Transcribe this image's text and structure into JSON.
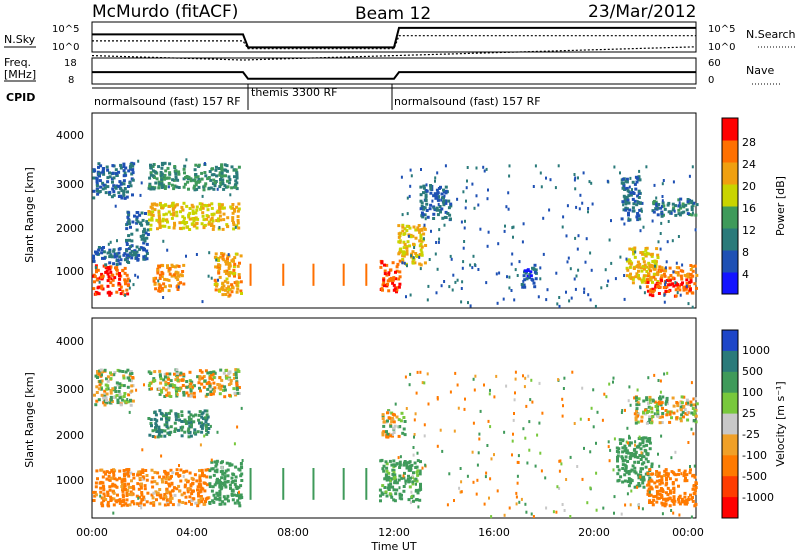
{
  "header": {
    "station": "McMurdo (fitACF)",
    "beam": "Beam 12",
    "date": "23/Mar/2012"
  },
  "top_panels": {
    "nsky_label": "N.Sky",
    "nsky_ticks": [
      "10^5",
      "10^0"
    ],
    "nsearch_ticks": [
      "10^5",
      "10^0"
    ],
    "nsearch_label": "N.Search",
    "freq_label_1": "Freq.",
    "freq_label_2": "[MHz]",
    "freq_ticks": [
      "18",
      "8"
    ],
    "nave_ticks": [
      "60",
      "0"
    ],
    "nave_label": "Nave",
    "cpid_label": "CPID",
    "cpid_segments": [
      {
        "text": "normalsound (fast) 157 RF"
      },
      {
        "text": "themis 3300 RF"
      },
      {
        "text": "normalsound (fast) 157 RF"
      }
    ]
  },
  "axes": {
    "ylabel": "Slant Range [km]",
    "xlabel": "Time UT",
    "y_ticks": [
      "1000",
      "2000",
      "3000",
      "4000"
    ],
    "x_ticks": [
      "00:00",
      "04:00",
      "08:00",
      "12:00",
      "16:00",
      "20:00",
      "00:00"
    ]
  },
  "colorbars": {
    "power": {
      "label": "Power [dB]",
      "ticks": [
        "4",
        "8",
        "12",
        "16",
        "20",
        "24",
        "28"
      ],
      "colors": [
        "#1414ff",
        "#1e50b4",
        "#2a7a7a",
        "#3f9a5a",
        "#c9d400",
        "#f0a010",
        "#ff7000",
        "#ff0000"
      ]
    },
    "velocity": {
      "label": "Velocity [m s⁻¹]",
      "ticks": [
        "1000",
        "500",
        "100",
        "25",
        "-25",
        "-100",
        "-500",
        "-1000"
      ],
      "colors": [
        "#1e46c8",
        "#2a7a7a",
        "#3f9a5a",
        "#78c83c",
        "#c8c8c8",
        "#f0a028",
        "#ff7a00",
        "#ff3c00",
        "#ff0000"
      ]
    }
  },
  "chart_data": [
    {
      "type": "heatmap",
      "title": "Power",
      "xlabel": "Time UT",
      "ylabel": "Slant Range [km]",
      "xlim": [
        "00:00",
        "24:00"
      ],
      "ylim": [
        200,
        4600
      ],
      "colorbar": {
        "label": "Power [dB]",
        "range": [
          0,
          32
        ]
      },
      "regions": [
        {
          "t": [
            0.0,
            1.4
          ],
          "r": [
            500,
            1200
          ],
          "value": 28
        },
        {
          "t": [
            0.0,
            1.4
          ],
          "r": [
            1200,
            1600
          ],
          "value": 8
        },
        {
          "t": [
            0.0,
            1.6
          ],
          "r": [
            2700,
            3500
          ],
          "value": 8
        },
        {
          "t": [
            1.3,
            2.2
          ],
          "r": [
            1300,
            2400
          ],
          "value": 8
        },
        {
          "t": [
            2.2,
            5.8
          ],
          "r": [
            2000,
            2600
          ],
          "value": 20
        },
        {
          "t": [
            2.4,
            3.6
          ],
          "r": [
            600,
            1200
          ],
          "value": 24
        },
        {
          "t": [
            2.2,
            5.8
          ],
          "r": [
            2900,
            3500
          ],
          "value": 12
        },
        {
          "t": [
            4.8,
            5.9
          ],
          "r": [
            500,
            1500
          ],
          "value": 22
        },
        {
          "t": [
            11.4,
            12.2
          ],
          "r": [
            600,
            1300
          ],
          "value": 28
        },
        {
          "t": [
            12.1,
            13.2
          ],
          "r": [
            1200,
            2100
          ],
          "value": 20
        },
        {
          "t": [
            13.0,
            14.2
          ],
          "r": [
            2200,
            3000
          ],
          "value": 8
        },
        {
          "t": [
            17.0,
            17.6
          ],
          "r": [
            700,
            1200
          ],
          "value": 6
        },
        {
          "t": [
            21.0,
            21.8
          ],
          "r": [
            2200,
            3200
          ],
          "value": 8
        },
        {
          "t": [
            21.2,
            22.5
          ],
          "r": [
            800,
            1600
          ],
          "value": 20
        },
        {
          "t": [
            22.0,
            24.0
          ],
          "r": [
            500,
            900
          ],
          "value": 28
        },
        {
          "t": [
            22.0,
            24.0
          ],
          "r": [
            900,
            1200
          ],
          "value": 24
        },
        {
          "t": [
            22.2,
            24.0
          ],
          "r": [
            2300,
            2700
          ],
          "value": 10
        }
      ]
    },
    {
      "type": "heatmap",
      "title": "Velocity",
      "xlabel": "Time UT",
      "ylabel": "Slant Range [km]",
      "xlim": [
        "00:00",
        "24:00"
      ],
      "ylim": [
        200,
        4600
      ],
      "colorbar": {
        "label": "Velocity [m s⁻¹]",
        "range": [
          -1000,
          1000
        ]
      },
      "regions": [
        {
          "t": [
            0.0,
            4.6
          ],
          "r": [
            500,
            1300
          ],
          "value": -200
        },
        {
          "t": [
            0.0,
            1.6
          ],
          "r": [
            2700,
            3500
          ],
          "value": 50
        },
        {
          "t": [
            2.2,
            4.6
          ],
          "r": [
            2000,
            2600
          ],
          "value": 500
        },
        {
          "t": [
            2.2,
            5.8
          ],
          "r": [
            2900,
            3500
          ],
          "value": 0
        },
        {
          "t": [
            4.6,
            5.9
          ],
          "r": [
            500,
            1500
          ],
          "value": 300
        },
        {
          "t": [
            11.4,
            13.0
          ],
          "r": [
            600,
            1500
          ],
          "value": 250
        },
        {
          "t": [
            11.5,
            12.4
          ],
          "r": [
            2000,
            2600
          ],
          "value": 0
        },
        {
          "t": [
            20.8,
            22.2
          ],
          "r": [
            900,
            2000
          ],
          "value": 300
        },
        {
          "t": [
            21.5,
            24.0
          ],
          "r": [
            2300,
            2900
          ],
          "value": 0
        },
        {
          "t": [
            22.0,
            24.0
          ],
          "r": [
            500,
            1300
          ],
          "value": -300
        }
      ]
    },
    {
      "type": "line",
      "title": "N.Sky / N.Search",
      "xlim": [
        "00:00",
        "24:00"
      ],
      "ylim": [
        "10^0",
        "10^5"
      ],
      "series": [
        {
          "x": [
            0,
            6,
            6.2,
            12,
            12.2,
            24
          ],
          "y": [
            0.6,
            0.6,
            0.1,
            0.1,
            0.85,
            0.85
          ]
        },
        {
          "x": [
            0,
            6,
            6.2,
            12,
            12.2,
            24
          ],
          "y": [
            0.35,
            0.35,
            0.05,
            0.05,
            0.55,
            0.55
          ]
        }
      ]
    },
    {
      "type": "line",
      "title": "Freq. / Nave",
      "xlim": [
        "00:00",
        "24:00"
      ],
      "series": [
        {
          "x": [
            0,
            6,
            6.2,
            12,
            12.2,
            24
          ],
          "y": [
            12.5,
            12.5,
            9.5,
            9.5,
            12.5,
            12.5
          ]
        },
        {
          "x": [
            0,
            6,
            24
          ],
          "y": [
            20,
            18,
            24
          ]
        }
      ]
    }
  ]
}
